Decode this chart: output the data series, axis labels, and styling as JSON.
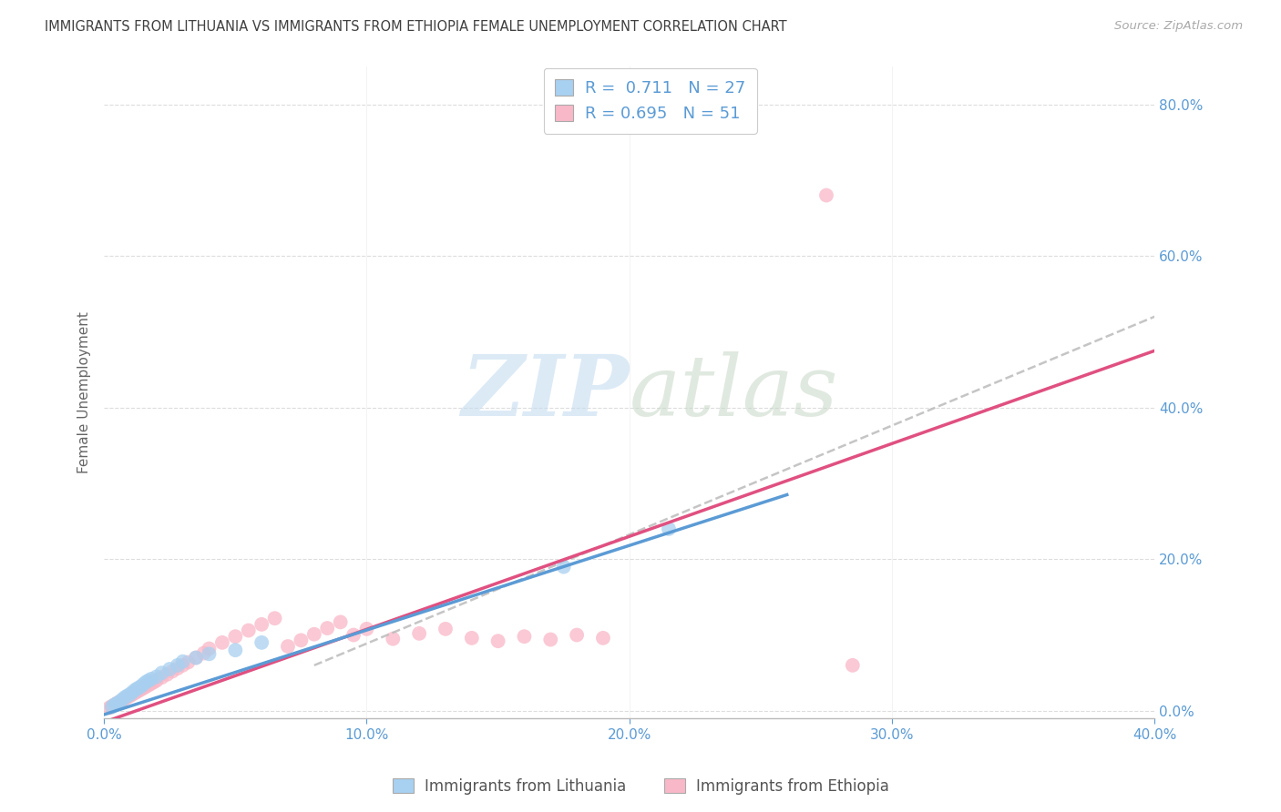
{
  "title": "IMMIGRANTS FROM LITHUANIA VS IMMIGRANTS FROM ETHIOPIA FEMALE UNEMPLOYMENT CORRELATION CHART",
  "source": "Source: ZipAtlas.com",
  "ylabel": "Female Unemployment",
  "xlim": [
    0.0,
    0.4
  ],
  "ylim": [
    -0.01,
    0.85
  ],
  "xtick_vals": [
    0.0,
    0.1,
    0.2,
    0.3,
    0.4
  ],
  "xtick_labels": [
    "0.0%",
    "10.0%",
    "20.0%",
    "30.0%",
    "40.0%"
  ],
  "ytick_vals": [
    0.0,
    0.2,
    0.4,
    0.6,
    0.8
  ],
  "ytick_labels_right": [
    "0.0%",
    "20.0%",
    "40.0%",
    "60.0%",
    "80.0%"
  ],
  "legend1_label": "Immigrants from Lithuania",
  "legend2_label": "Immigrants from Ethiopia",
  "R_lithuania": 0.711,
  "N_lithuania": 27,
  "R_ethiopia": 0.695,
  "N_ethiopia": 51,
  "color_lithuania": "#A8D0F0",
  "color_ethiopia": "#F9B8C8",
  "line_color_lithuania": "#5B9BD5",
  "line_color_ethiopia": "#E05080",
  "line_color_dashed": "#BBBBBB",
  "watermark_zip": "ZIP",
  "watermark_atlas": "atlas",
  "background_color": "#FFFFFF",
  "grid_color": "#DDDDDD",
  "title_color": "#404040",
  "right_axis_color": "#5B9BD5",
  "bottom_axis_color": "#5B9BD5",
  "lithuania_x": [
    0.003,
    0.004,
    0.005,
    0.006,
    0.007,
    0.008,
    0.009,
    0.01,
    0.011,
    0.012,
    0.013,
    0.014,
    0.015,
    0.016,
    0.017,
    0.018,
    0.02,
    0.022,
    0.025,
    0.028,
    0.03,
    0.035,
    0.04,
    0.05,
    0.06,
    0.175,
    0.215
  ],
  "lithuania_y": [
    0.005,
    0.008,
    0.01,
    0.012,
    0.015,
    0.018,
    0.02,
    0.022,
    0.025,
    0.028,
    0.03,
    0.032,
    0.035,
    0.038,
    0.04,
    0.042,
    0.045,
    0.05,
    0.055,
    0.06,
    0.065,
    0.07,
    0.075,
    0.08,
    0.09,
    0.19,
    0.24
  ],
  "ethiopia_x": [
    0.002,
    0.003,
    0.004,
    0.005,
    0.006,
    0.007,
    0.008,
    0.009,
    0.01,
    0.011,
    0.012,
    0.013,
    0.014,
    0.015,
    0.016,
    0.017,
    0.018,
    0.019,
    0.02,
    0.022,
    0.024,
    0.026,
    0.028,
    0.03,
    0.032,
    0.035,
    0.038,
    0.04,
    0.045,
    0.05,
    0.055,
    0.06,
    0.065,
    0.07,
    0.075,
    0.08,
    0.085,
    0.09,
    0.095,
    0.1,
    0.11,
    0.12,
    0.13,
    0.14,
    0.15,
    0.16,
    0.17,
    0.18,
    0.19,
    0.275,
    0.285
  ],
  "ethiopia_y": [
    0.004,
    0.006,
    0.008,
    0.01,
    0.012,
    0.014,
    0.016,
    0.018,
    0.02,
    0.022,
    0.024,
    0.026,
    0.028,
    0.03,
    0.032,
    0.034,
    0.036,
    0.038,
    0.04,
    0.044,
    0.048,
    0.052,
    0.056,
    0.06,
    0.064,
    0.07,
    0.076,
    0.082,
    0.09,
    0.098,
    0.106,
    0.114,
    0.122,
    0.085,
    0.093,
    0.101,
    0.109,
    0.117,
    0.1,
    0.108,
    0.095,
    0.102,
    0.108,
    0.096,
    0.092,
    0.098,
    0.094,
    0.1,
    0.096,
    0.68,
    0.06
  ],
  "lith_line_x0": 0.0,
  "lith_line_y0": -0.005,
  "lith_line_x1": 0.26,
  "lith_line_y1": 0.285,
  "eth_line_x0": 0.0,
  "eth_line_y0": -0.015,
  "eth_line_x1": 0.4,
  "eth_line_y1": 0.475,
  "dash_line_x0": 0.08,
  "dash_line_y0": 0.06,
  "dash_line_x1": 0.4,
  "dash_line_y1": 0.52
}
